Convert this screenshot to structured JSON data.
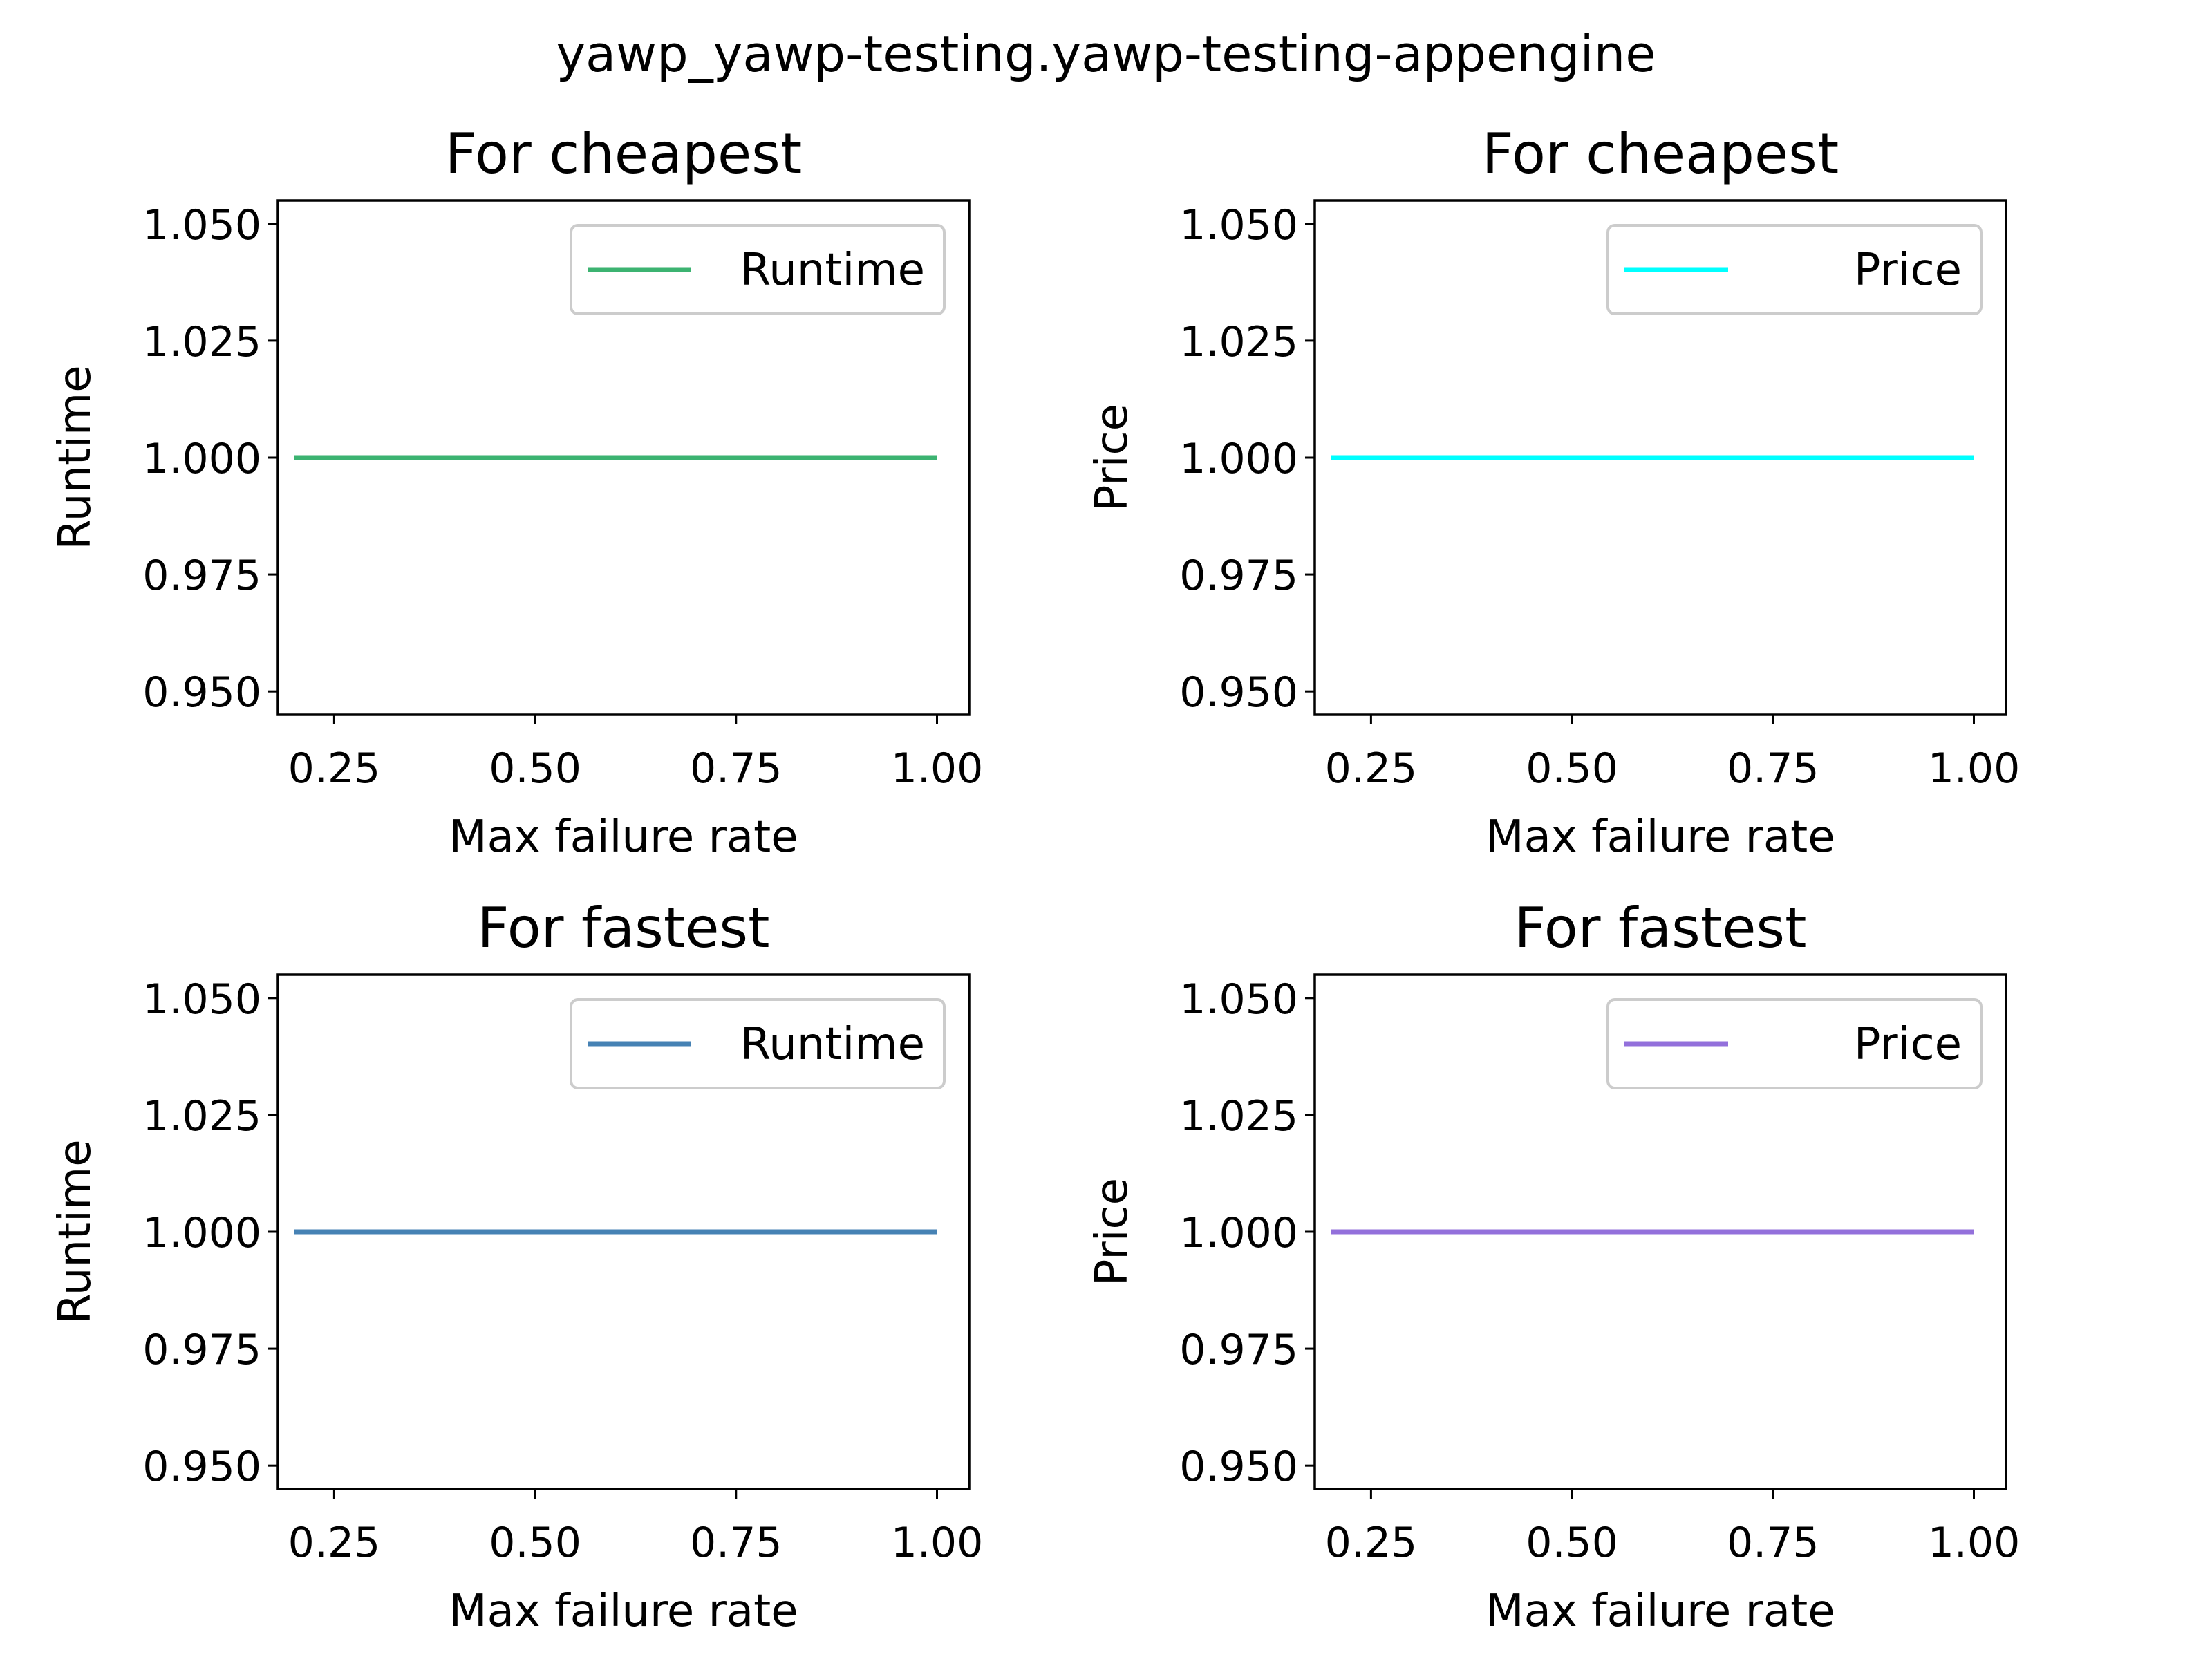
{
  "figure": {
    "suptitle": "yawp_yawp-testing.yawp-testing-appengine"
  },
  "chart_data": [
    {
      "type": "line",
      "title": "For cheapest",
      "xlabel": "Max failure rate",
      "ylabel": "Runtime",
      "x": [
        0.2,
        1.0
      ],
      "series": [
        {
          "name": "Runtime",
          "values": [
            1.0,
            1.0
          ],
          "color": "#3cb371"
        }
      ],
      "xlim": [
        0.18,
        1.04
      ],
      "ylim": [
        0.945,
        1.055
      ],
      "xticks": [
        0.25,
        0.5,
        0.75,
        1.0
      ],
      "xtick_labels": [
        "0.25",
        "0.50",
        "0.75",
        "1.00"
      ],
      "yticks": [
        0.95,
        0.975,
        1.0,
        1.025,
        1.05
      ],
      "ytick_labels": [
        "0.950",
        "0.975",
        "1.000",
        "1.025",
        "1.050"
      ],
      "legend": "upper right",
      "grid": false
    },
    {
      "type": "line",
      "title": "For cheapest",
      "xlabel": "Max failure rate",
      "ylabel": "Price",
      "x": [
        0.2,
        1.0
      ],
      "series": [
        {
          "name": "Price",
          "values": [
            1.0,
            1.0
          ],
          "color": "#00ffff"
        }
      ],
      "xlim": [
        0.18,
        1.04
      ],
      "ylim": [
        0.945,
        1.055
      ],
      "xticks": [
        0.25,
        0.5,
        0.75,
        1.0
      ],
      "xtick_labels": [
        "0.25",
        "0.50",
        "0.75",
        "1.00"
      ],
      "yticks": [
        0.95,
        0.975,
        1.0,
        1.025,
        1.05
      ],
      "ytick_labels": [
        "0.950",
        "0.975",
        "1.000",
        "1.025",
        "1.050"
      ],
      "legend": "upper right",
      "grid": false
    },
    {
      "type": "line",
      "title": "For fastest",
      "xlabel": "Max failure rate",
      "ylabel": "Runtime",
      "x": [
        0.2,
        1.0
      ],
      "series": [
        {
          "name": "Runtime",
          "values": [
            1.0,
            1.0
          ],
          "color": "#4682b4"
        }
      ],
      "xlim": [
        0.18,
        1.04
      ],
      "ylim": [
        0.945,
        1.055
      ],
      "xticks": [
        0.25,
        0.5,
        0.75,
        1.0
      ],
      "xtick_labels": [
        "0.25",
        "0.50",
        "0.75",
        "1.00"
      ],
      "yticks": [
        0.95,
        0.975,
        1.0,
        1.025,
        1.05
      ],
      "ytick_labels": [
        "0.950",
        "0.975",
        "1.000",
        "1.025",
        "1.050"
      ],
      "legend": "upper right",
      "grid": false
    },
    {
      "type": "line",
      "title": "For fastest",
      "xlabel": "Max failure rate",
      "ylabel": "Price",
      "x": [
        0.2,
        1.0
      ],
      "series": [
        {
          "name": "Price",
          "values": [
            1.0,
            1.0
          ],
          "color": "#9370db"
        }
      ],
      "xlim": [
        0.18,
        1.04
      ],
      "ylim": [
        0.945,
        1.055
      ],
      "xticks": [
        0.25,
        0.5,
        0.75,
        1.0
      ],
      "xtick_labels": [
        "0.25",
        "0.50",
        "0.75",
        "1.00"
      ],
      "yticks": [
        0.95,
        0.975,
        1.0,
        1.025,
        1.05
      ],
      "ytick_labels": [
        "0.950",
        "0.975",
        "1.000",
        "1.025",
        "1.050"
      ],
      "legend": "upper right",
      "grid": false
    }
  ]
}
